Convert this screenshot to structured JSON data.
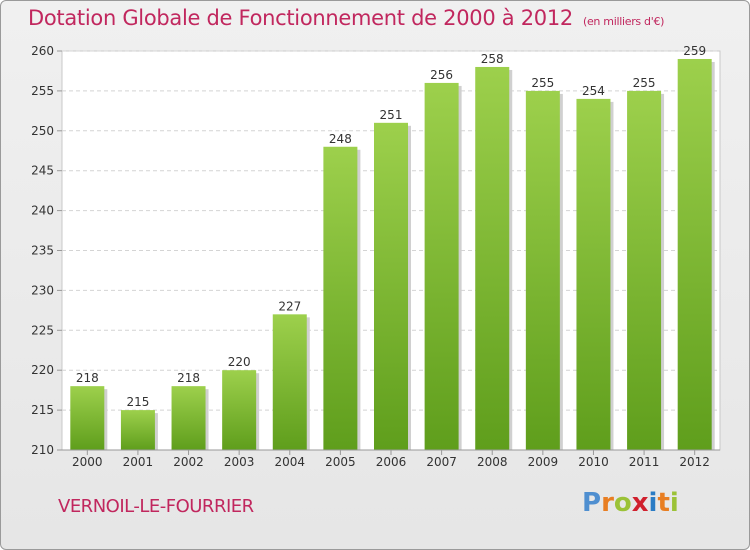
{
  "header": {
    "title": "Dotation Globale de Fonctionnement de 2000 à 2012",
    "unit": "(en milliers d'€)"
  },
  "footer": {
    "commune": "VERNOIL-LE-FOURRIER",
    "logo": {
      "letters": [
        "P",
        "r",
        "o",
        "x",
        "i",
        "t",
        "i"
      ],
      "colors": [
        "#4f8fd0",
        "#e87e22",
        "#9bc237",
        "#d0202d",
        "#2a7cc5",
        "#e87e22",
        "#9bc237"
      ]
    }
  },
  "chart_data": {
    "type": "bar",
    "categories": [
      "2000",
      "2001",
      "2002",
      "2003",
      "2004",
      "2005",
      "2006",
      "2007",
      "2008",
      "2009",
      "2010",
      "2011",
      "2012"
    ],
    "values": [
      218,
      215,
      218,
      220,
      227,
      248,
      251,
      256,
      258,
      255,
      254,
      255,
      259
    ],
    "title": "Dotation Globale de Fonctionnement de 2000 à 2012",
    "subtitle": "(en milliers d'€)",
    "ylim": [
      210,
      260
    ],
    "yticks": [
      210,
      215,
      220,
      225,
      230,
      235,
      240,
      245,
      250,
      255,
      260
    ],
    "grid": true,
    "bar_color": "#8cc63f",
    "bar_color_dark": "#5b9a1a"
  }
}
